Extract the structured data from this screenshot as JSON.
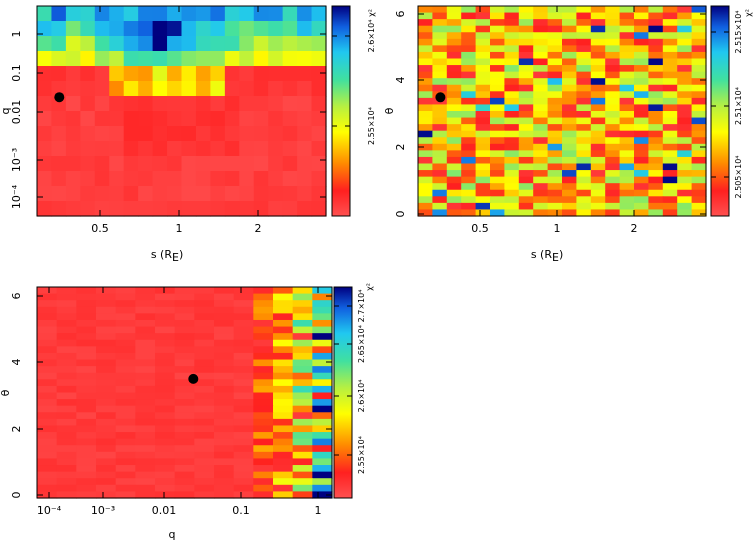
{
  "chart_data": [
    {
      "type": "heatmap",
      "name": "s-q",
      "xlabel": "s (R",
      "xlabel_sub": "E",
      "xlabel_close": ")",
      "ylabel": "q",
      "x_ticks": [
        "0.5",
        "1",
        "2"
      ],
      "y_ticks": [
        "10⁻⁴",
        "10⁻³",
        "0.01",
        "0.1",
        "1"
      ],
      "colorbar_label": "χ²",
      "colorbar_ticks": [
        "2.55×10⁴",
        "2.6×10⁴"
      ],
      "best_fit": {
        "s": 0.35,
        "q": 0.024
      },
      "grid_rows": 14,
      "grid_cols": 20
    },
    {
      "type": "heatmap",
      "name": "s-theta",
      "xlabel": "s (R",
      "xlabel_sub": "E",
      "xlabel_close": ")",
      "ylabel": "θ",
      "x_ticks": [
        "0.5",
        "1",
        "2"
      ],
      "y_ticks": [
        "0",
        "2",
        "4",
        "6"
      ],
      "colorbar_label": "χ²",
      "colorbar_ticks": [
        "2.505×10⁴",
        "2.51×10⁴",
        "2.515×10⁴"
      ],
      "best_fit": {
        "s": 0.35,
        "theta": 3.5
      },
      "grid_rows": 32,
      "grid_cols": 20
    },
    {
      "type": "heatmap",
      "name": "q-theta",
      "xlabel": "q",
      "ylabel": "θ",
      "x_ticks": [
        "10⁻⁴",
        "10⁻³",
        "0.01",
        "0.1",
        "1"
      ],
      "y_ticks": [
        "0",
        "2",
        "4",
        "6"
      ],
      "colorbar_label": "χ²",
      "colorbar_ticks": [
        "2.55×10⁴",
        "2.6×10⁴",
        "2.65×10⁴",
        "2.7×10⁴"
      ],
      "best_fit": {
        "q": 0.024,
        "theta": 3.5
      },
      "grid_rows": 32,
      "grid_cols": 15
    }
  ]
}
